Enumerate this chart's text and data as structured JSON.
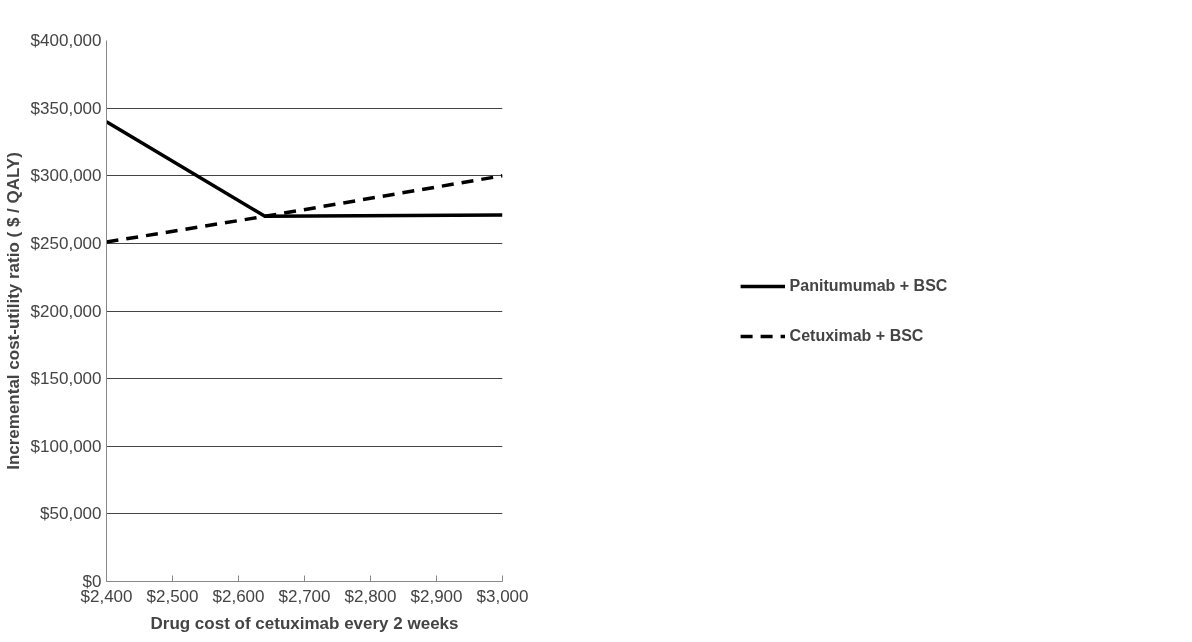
{
  "chart_data": {
    "type": "line",
    "xlabel": "Drug cost of cetuximab every 2 weeks",
    "ylabel": "Incremental cost-utility ratio ( $ / QALY)",
    "x": [
      2400,
      2640,
      3000
    ],
    "series": [
      {
        "name": "Panitumumab + BSC",
        "color": "#000000",
        "values": [
          340000,
          270000,
          271000
        ],
        "line_style": "solid"
      },
      {
        "name": "Cetuximab + BSC",
        "color": "#000000",
        "values": [
          251000,
          270000,
          300000
        ],
        "line_style": "dashed"
      }
    ],
    "xlim": [
      2400,
      3000
    ],
    "ylim": [
      0,
      400000
    ],
    "xticks": [
      {
        "value": 2400,
        "label": "$2,400"
      },
      {
        "value": 2500,
        "label": "$2,500"
      },
      {
        "value": 2600,
        "label": "$2,600"
      },
      {
        "value": 2700,
        "label": "$2,700"
      },
      {
        "value": 2800,
        "label": "$2,800"
      },
      {
        "value": 2900,
        "label": "$2,900"
      },
      {
        "value": 3000,
        "label": "$3,000"
      }
    ],
    "yticks": [
      {
        "value": 0,
        "label": "$0"
      },
      {
        "value": 50000,
        "label": "$50,000"
      },
      {
        "value": 100000,
        "label": "$100,000"
      },
      {
        "value": 150000,
        "label": "$150,000"
      },
      {
        "value": 200000,
        "label": "$200,000"
      },
      {
        "value": 250000,
        "label": "$250,000"
      },
      {
        "value": 300000,
        "label": "$300,000"
      },
      {
        "value": 350000,
        "label": "$350,000"
      },
      {
        "value": 400000,
        "label": "$400,000"
      }
    ],
    "grid": "y",
    "legend": "right",
    "marker": "none"
  }
}
